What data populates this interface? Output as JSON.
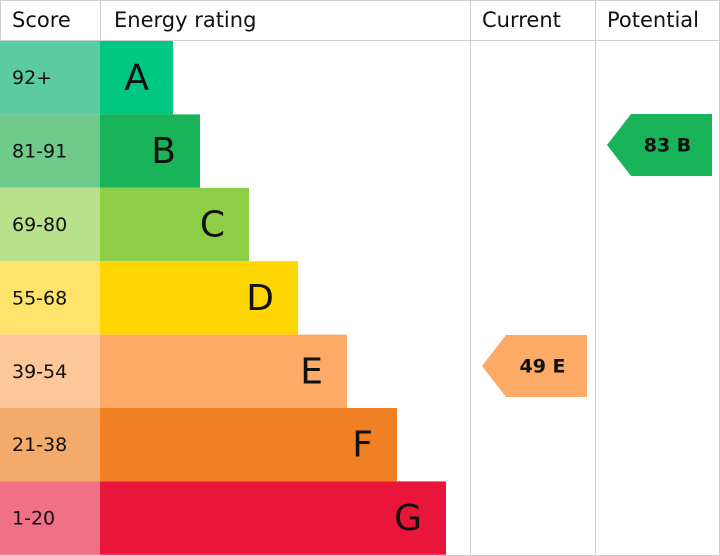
{
  "header": {
    "score": "Score",
    "rating": "Energy rating",
    "current": "Current",
    "potential": "Potential"
  },
  "rows": [
    {
      "score": "92+",
      "rating": "A"
    },
    {
      "score": "81-91",
      "rating": "B"
    },
    {
      "score": "69-80",
      "rating": "C"
    },
    {
      "score": "55-68",
      "rating": "D"
    },
    {
      "score": "39-54",
      "rating": "E"
    },
    {
      "score": "21-38",
      "rating": "F"
    },
    {
      "score": "1-20",
      "rating": "G"
    }
  ],
  "current": "49 E",
  "potential": "83 B"
}
